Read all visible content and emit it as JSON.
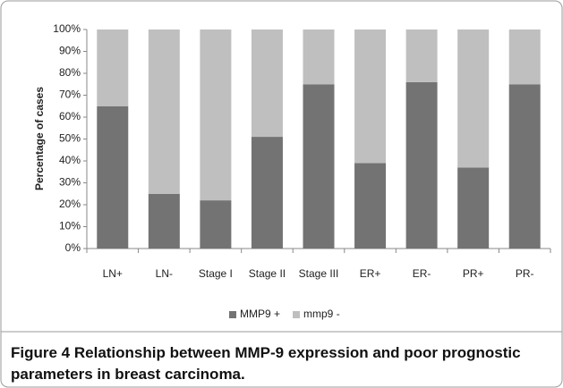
{
  "chart_data": {
    "type": "bar",
    "stacked": true,
    "ylabel": "Percentage of cases",
    "categories": [
      "LN+",
      "LN-",
      "Stage I",
      "Stage II",
      "Stage III",
      "ER+",
      "ER-",
      "PR+",
      "PR-"
    ],
    "series": [
      {
        "name": "MMP9 +",
        "color": "#737373",
        "values": [
          65,
          25,
          22,
          51,
          75,
          39,
          76,
          37,
          75
        ]
      },
      {
        "name": "mmp9 -",
        "color": "#bfbfbf",
        "values": [
          35,
          75,
          78,
          49,
          25,
          61,
          24,
          63,
          25
        ]
      }
    ],
    "ylim": [
      0,
      100
    ],
    "yticks": [
      {
        "value": 0,
        "label": "0%"
      },
      {
        "value": 10,
        "label": "10%"
      },
      {
        "value": 20,
        "label": "20%"
      },
      {
        "value": 30,
        "label": "30%"
      },
      {
        "value": 40,
        "label": "40%"
      },
      {
        "value": 50,
        "label": "50%"
      },
      {
        "value": 60,
        "label": "60%"
      },
      {
        "value": 70,
        "label": "70%"
      },
      {
        "value": 80,
        "label": "80%"
      },
      {
        "value": 90,
        "label": "90%"
      },
      {
        "value": 100,
        "label": "100%"
      }
    ],
    "grid": false,
    "legend": "bottom",
    "caption_label": "Figure 4",
    "caption": "Relationship between MMP-9 expression and poor prognostic parameters in breast carcinoma."
  }
}
